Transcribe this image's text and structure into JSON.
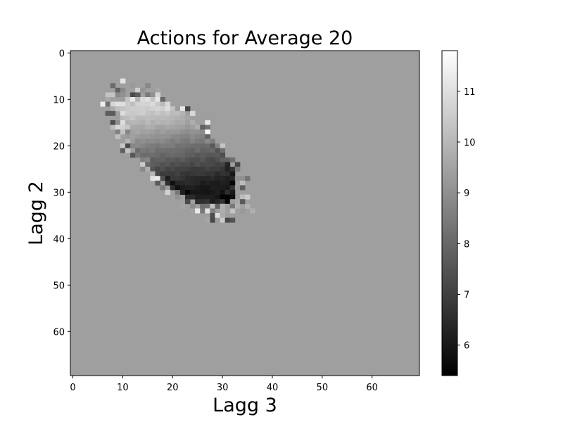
{
  "chart_data": {
    "type": "heatmap",
    "title": "Actions for Average 20",
    "xlabel": "Lagg 3",
    "ylabel": "Lagg 2",
    "grid_size": 70,
    "xlim": [
      -0.5,
      69.5
    ],
    "ylim": [
      69.5,
      -0.5
    ],
    "x_ticks": [
      0,
      10,
      20,
      30,
      40,
      50,
      60
    ],
    "y_ticks": [
      0,
      10,
      20,
      30,
      40,
      50,
      60
    ],
    "colormap": "gray",
    "background_value": 9.4,
    "colorbar": {
      "vmin": 5.4,
      "vmax": 11.8,
      "ticks": [
        6,
        7,
        8,
        9,
        10,
        11
      ],
      "location": "right"
    },
    "blob": {
      "description_values": "elliptical region of lower values, minimum about 5.5 near (x=26, y=30), rising to about 11 near (x=22, y=10)",
      "center": [
        21,
        21
      ],
      "dark_corner": [
        25,
        29
      ],
      "light_corner": [
        22,
        11
      ],
      "min_value": 5.5,
      "max_value": 11.2,
      "speckle_band": [
        [
          6,
          12
        ],
        [
          35,
          34
        ]
      ]
    },
    "grid": false
  }
}
